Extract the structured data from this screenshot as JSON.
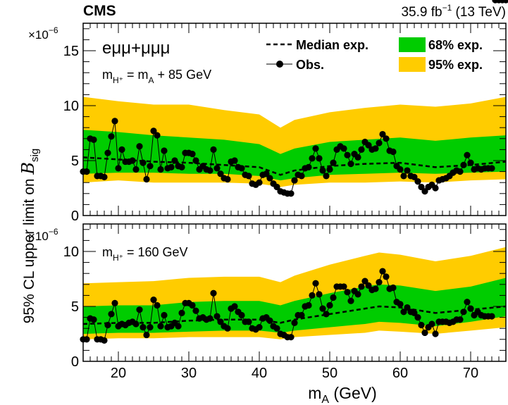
{
  "header": {
    "experiment": "CMS",
    "lumi": "35.9 fb",
    "lumi_exp": "−1",
    "energy": " (13 TeV)"
  },
  "y_axis_title": {
    "main": "95% CL upper limit on ",
    "symbol": "B",
    "subscript": "sig"
  },
  "x_axis_title": {
    "main": "m",
    "subscript": "A",
    "unit": " (GeV)"
  },
  "legend": {
    "median": "Median exp.",
    "observed": "Obs.",
    "band68": "68% exp.",
    "band95": "95% exp."
  },
  "colors": {
    "band68": "#00cc00",
    "band95": "#ffcc00",
    "observed": "#000000",
    "median": "#000000"
  },
  "chart_data": [
    {
      "type": "line",
      "panel": "top",
      "label_channel": "eμμ+μμμ",
      "label_mass_lhs": "m",
      "label_mass_sub": "H⁺",
      "label_mass_rhs_A": " = m",
      "label_mass_rhs_A_sub": "A",
      "label_mass_rhs_tail": " + 85 GeV",
      "y_multiplier_base": "×10",
      "y_multiplier_exp": "−6",
      "xlim": [
        15,
        75
      ],
      "ylim": [
        0,
        17.5
      ],
      "x_ticks": [
        20,
        30,
        40,
        50,
        60,
        70
      ],
      "y_ticks": [
        0,
        5,
        10,
        15
      ],
      "band_x": [
        15,
        20,
        25,
        30,
        35,
        40,
        43,
        45,
        50,
        55,
        60,
        65,
        70,
        75
      ],
      "band95_low": [
        3.0,
        3.2,
        3.0,
        3.0,
        3.0,
        2.9,
        2.6,
        2.8,
        3.0,
        3.0,
        3.1,
        3.0,
        3.2,
        3.3
      ],
      "band68_low": [
        3.8,
        3.9,
        3.9,
        3.8,
        3.8,
        3.6,
        3.2,
        3.4,
        3.7,
        3.8,
        3.9,
        3.8,
        3.9,
        4.0
      ],
      "median": [
        5.3,
        5.1,
        4.9,
        4.8,
        4.6,
        4.4,
        3.7,
        4.1,
        4.5,
        4.7,
        4.8,
        4.4,
        4.6,
        4.9
      ],
      "band68_high": [
        7.8,
        7.6,
        7.3,
        7.1,
        6.9,
        6.5,
        5.6,
        6.1,
        6.7,
        6.9,
        7.1,
        6.8,
        7.1,
        7.3
      ],
      "band95_high": [
        10.8,
        10.4,
        10.1,
        10.1,
        9.6,
        9.2,
        8.0,
        8.7,
        9.4,
        9.8,
        10.1,
        9.9,
        10.2,
        10.8
      ],
      "obs_x": [
        15.0,
        15.5,
        16.0,
        16.5,
        17.0,
        17.5,
        18.0,
        18.5,
        19.0,
        19.5,
        20.0,
        20.5,
        21.0,
        21.5,
        22.0,
        22.5,
        23.0,
        23.5,
        24.0,
        24.5,
        25.0,
        25.5,
        26.0,
        26.5,
        27.0,
        27.5,
        28.0,
        28.5,
        29.0,
        29.5,
        30.0,
        30.5,
        31.0,
        31.5,
        32.0,
        32.5,
        33.0,
        33.5,
        34.0,
        34.5,
        35.0,
        35.5,
        36.0,
        36.5,
        37.0,
        37.5,
        38.0,
        38.5,
        39.0,
        39.5,
        40.0,
        40.5,
        41.0,
        41.5,
        42.0,
        42.5,
        43.0,
        43.5,
        44.0,
        44.5,
        45.0,
        45.5,
        46.0,
        46.5,
        47.0,
        47.5,
        48.0,
        48.5,
        49.0,
        49.5,
        50.0,
        50.5,
        51.0,
        51.5,
        52.0,
        52.5,
        53.0,
        53.5,
        54.0,
        54.5,
        55.0,
        55.5,
        56.0,
        56.5,
        57.0,
        57.5,
        58.0,
        58.5,
        59.0,
        59.5,
        60.0,
        60.5,
        61.0,
        61.5,
        62.0,
        62.5,
        63.0,
        63.5,
        64.0,
        64.5,
        65.0,
        65.5,
        66.0,
        66.5,
        67.0,
        67.5,
        68.0,
        68.5,
        69.0,
        69.5,
        70.0,
        70.5,
        71.0,
        71.5,
        72.0,
        72.5,
        73.0,
        73.5,
        74.0,
        74.5,
        75.0
      ],
      "obs_y": [
        4.0,
        4.0,
        7.0,
        6.9,
        3.6,
        3.6,
        3.5,
        5.7,
        7.2,
        8.6,
        4.3,
        6.0,
        4.9,
        4.9,
        5.0,
        4.2,
        6.3,
        4.8,
        3.3,
        4.5,
        7.7,
        7.3,
        4.2,
        5.9,
        4.3,
        4.4,
        5.0,
        4.5,
        4.4,
        5.7,
        5.7,
        5.6,
        5.0,
        4.2,
        4.5,
        4.2,
        4.1,
        6.0,
        4.3,
        3.8,
        3.4,
        3.3,
        4.9,
        5.0,
        4.4,
        4.3,
        3.7,
        3.6,
        2.9,
        2.8,
        3.0,
        3.7,
        3.8,
        3.4,
        2.9,
        2.6,
        2.2,
        2.1,
        2.0,
        2.0,
        3.2,
        3.7,
        3.6,
        4.3,
        4.4,
        5.2,
        6.1,
        5.2,
        4.1,
        3.6,
        4.2,
        4.8,
        6.0,
        6.3,
        6.1,
        5.5,
        4.7,
        5.6,
        5.3,
        6.0,
        6.7,
        6.4,
        6.0,
        6.1,
        6.6,
        7.4,
        7.0,
        5.9,
        5.8,
        4.5,
        4.2,
        3.6,
        4.1,
        3.6,
        3.5,
        3.1,
        2.6,
        2.2,
        2.6,
        2.8,
        2.5,
        3.2,
        3.3,
        3.4,
        3.6,
        3.9,
        4.1,
        4.0,
        4.6,
        5.5,
        4.8,
        4.2,
        4.3,
        4.2,
        4.3,
        4.3,
        4.3
      ]
    },
    {
      "type": "line",
      "panel": "bottom",
      "label_mass_lhs": "m",
      "label_mass_sub": "H⁺",
      "label_mass_rhs": " = 160 GeV",
      "y_multiplier_base": "×10",
      "y_multiplier_exp": "−6",
      "xlim": [
        15,
        75
      ],
      "ylim": [
        0,
        12.5
      ],
      "x_ticks": [
        20,
        30,
        40,
        50,
        60,
        70
      ],
      "y_ticks": [
        0,
        5,
        10
      ],
      "band_x": [
        15,
        20,
        25,
        30,
        35,
        40,
        43,
        45,
        50,
        55,
        57,
        60,
        65,
        70,
        75
      ],
      "band95_low": [
        2.0,
        2.1,
        2.1,
        2.2,
        2.2,
        2.2,
        2.0,
        2.2,
        2.4,
        2.6,
        2.8,
        2.7,
        2.5,
        2.8,
        3.1
      ],
      "band68_low": [
        2.5,
        2.6,
        2.6,
        2.7,
        2.8,
        2.8,
        2.6,
        2.8,
        3.1,
        3.4,
        3.6,
        3.5,
        3.2,
        3.6,
        4.1
      ],
      "median": [
        3.4,
        3.5,
        3.5,
        3.7,
        3.8,
        3.8,
        3.5,
        3.8,
        4.3,
        4.8,
        5.0,
        4.9,
        4.4,
        4.7,
        5.0
      ],
      "band68_high": [
        5.0,
        5.1,
        5.1,
        5.4,
        5.5,
        5.5,
        5.1,
        5.5,
        6.2,
        6.8,
        7.0,
        6.9,
        6.4,
        6.8,
        7.6
      ],
      "band95_high": [
        7.1,
        7.2,
        7.3,
        7.6,
        7.7,
        7.7,
        7.2,
        7.8,
        8.8,
        9.6,
        9.9,
        9.7,
        9.1,
        9.6,
        10.4
      ],
      "obs_x": [
        15.0,
        15.5,
        16.0,
        16.5,
        17.0,
        17.5,
        18.0,
        18.5,
        19.0,
        19.5,
        20.0,
        20.5,
        21.0,
        21.5,
        22.0,
        22.5,
        23.0,
        23.5,
        24.0,
        24.5,
        25.0,
        25.5,
        26.0,
        26.5,
        27.0,
        27.5,
        28.0,
        28.5,
        29.0,
        29.5,
        30.0,
        30.5,
        31.0,
        31.5,
        32.0,
        32.5,
        33.0,
        33.5,
        34.0,
        34.5,
        35.0,
        35.5,
        36.0,
        36.5,
        37.0,
        37.5,
        38.0,
        38.5,
        39.0,
        39.5,
        40.0,
        40.5,
        41.0,
        41.5,
        42.0,
        42.5,
        43.0,
        43.5,
        44.0,
        44.5,
        45.0,
        45.5,
        46.0,
        46.5,
        47.0,
        47.5,
        48.0,
        48.5,
        49.0,
        49.5,
        50.0,
        50.5,
        51.0,
        51.5,
        52.0,
        52.5,
        53.0,
        53.5,
        54.0,
        54.5,
        55.0,
        55.5,
        56.0,
        56.5,
        57.0,
        57.5,
        58.0,
        58.5,
        59.0,
        59.5,
        60.0,
        60.5,
        61.0,
        61.5,
        62.0,
        62.5,
        63.0,
        63.5,
        64.0,
        64.5,
        65.0,
        65.5,
        66.0,
        66.5,
        67.0,
        67.5,
        68.0,
        68.5,
        69.0,
        69.5,
        70.0,
        70.5,
        71.0,
        71.5,
        72.0,
        72.5,
        73.0,
        73.5,
        74.0,
        74.5,
        75.0
      ],
      "obs_y": [
        2.0,
        2.0,
        3.9,
        3.8,
        2.0,
        2.0,
        1.9,
        3.3,
        4.3,
        5.3,
        3.2,
        3.4,
        3.3,
        3.5,
        3.6,
        3.4,
        4.7,
        3.1,
        2.4,
        3.1,
        5.6,
        5.1,
        3.2,
        4.2,
        3.1,
        3.2,
        3.5,
        3.2,
        4.4,
        5.3,
        5.3,
        5.1,
        4.6,
        3.9,
        4.0,
        3.8,
        3.9,
        6.2,
        4.1,
        3.6,
        3.2,
        3.0,
        4.8,
        5.0,
        4.5,
        4.2,
        3.6,
        3.6,
        3.0,
        2.9,
        3.1,
        3.9,
        4.0,
        3.7,
        3.2,
        3.0,
        2.5,
        2.4,
        2.2,
        2.2,
        3.5,
        4.2,
        4.2,
        5.0,
        5.1,
        6.0,
        7.1,
        6.1,
        4.8,
        4.3,
        5.1,
        5.8,
        6.8,
        6.8,
        6.8,
        6.3,
        5.5,
        6.4,
        6.1,
        6.8,
        7.3,
        6.9,
        6.5,
        6.6,
        7.2,
        8.2,
        7.7,
        6.6,
        6.7,
        5.4,
        5.2,
        4.5,
        4.9,
        4.5,
        4.4,
        4.0,
        3.3,
        2.6,
        3.1,
        3.4,
        2.5,
        3.6,
        3.6,
        3.6,
        3.5,
        3.6,
        3.8,
        3.8,
        4.5,
        5.4,
        4.8,
        4.2,
        4.5,
        4.2,
        4.1,
        4.1,
        4.1
      ]
    }
  ]
}
